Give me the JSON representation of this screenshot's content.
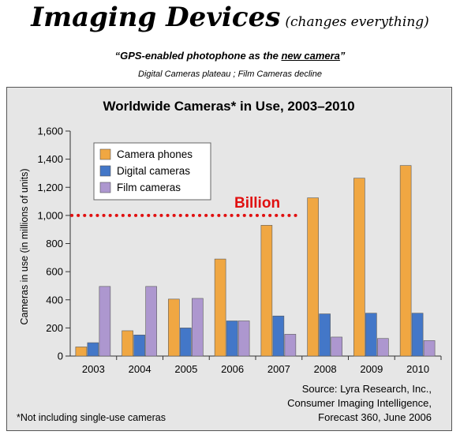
{
  "header": {
    "title": "Imaging Devices",
    "title_suffix": "(changes everything)",
    "quote_open": "“GPS-enabled photophone as the ",
    "quote_link": "new camera",
    "quote_close": "”",
    "tagline": "Digital Cameras plateau ; Film Cameras decline"
  },
  "chart_data": {
    "type": "bar",
    "title": "Worldwide Cameras* in Use, 2003–2010",
    "ylabel": "Cameras in use (in millions of units)",
    "xlabel": "",
    "ylim": [
      0,
      1600
    ],
    "yticks": [
      0,
      200,
      400,
      600,
      800,
      1000,
      1200,
      1400,
      1600
    ],
    "ytick_labels": [
      "0",
      "200",
      "400",
      "600",
      "800",
      "1,000",
      "1,200",
      "1,400",
      "1,600"
    ],
    "categories": [
      "2003",
      "2004",
      "2005",
      "2006",
      "2007",
      "2008",
      "2009",
      "2010"
    ],
    "series": [
      {
        "name": "Camera phones",
        "color": "#f0a742",
        "values": [
          65,
          180,
          405,
          690,
          930,
          1125,
          1265,
          1355
        ]
      },
      {
        "name": "Digital cameras",
        "color": "#4377c8",
        "values": [
          95,
          150,
          200,
          250,
          285,
          300,
          305,
          305
        ]
      },
      {
        "name": "Film cameras",
        "color": "#ad97cf",
        "values": [
          495,
          495,
          410,
          250,
          155,
          135,
          125,
          110
        ]
      }
    ],
    "grid": false,
    "legend_position": "top-left",
    "annotation": {
      "label": "Billion",
      "value": 1000,
      "color": "#e01010"
    },
    "footnote": "*Not including single-use cameras",
    "source_lines": [
      "Source: Lyra Research, Inc.,",
      "Consumer Imaging Intelligence,",
      "Forecast 360, June 2006"
    ]
  }
}
